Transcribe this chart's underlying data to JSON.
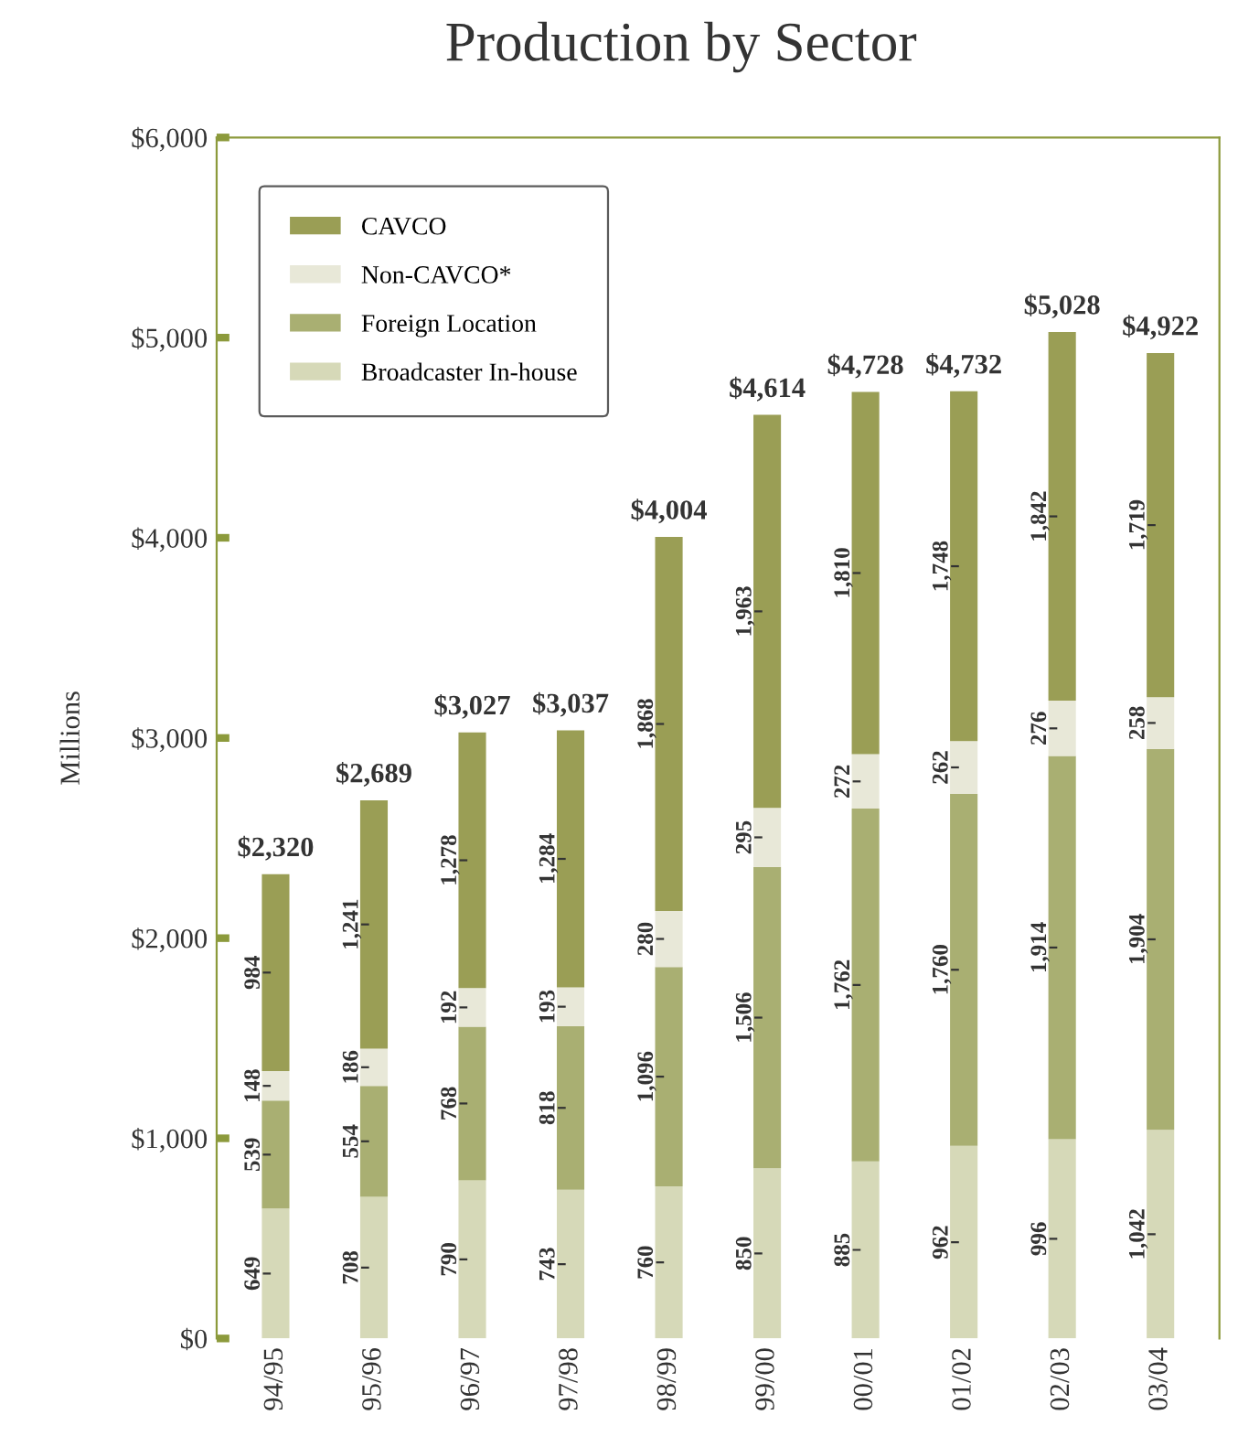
{
  "chart_data": {
    "type": "bar",
    "title": "Production by Sector",
    "ylabel": "Millions",
    "stacked": true,
    "categories": [
      "94/95",
      "95/96",
      "96/97",
      "97/98",
      "98/99",
      "99/00",
      "00/01",
      "01/02",
      "02/03",
      "03/04"
    ],
    "series": [
      {
        "name": "Broadcaster In-house",
        "color": "#d6d9b8",
        "values": [
          649,
          708,
          790,
          743,
          760,
          850,
          885,
          962,
          996,
          1042
        ],
        "value_labels": [
          "649",
          "708",
          "790",
          "743",
          "760",
          "850",
          "885",
          "962",
          "996",
          "1,042"
        ]
      },
      {
        "name": "Foreign Location",
        "color": "#a9af72",
        "values": [
          539,
          554,
          768,
          818,
          1096,
          1506,
          1762,
          1760,
          1914,
          1904
        ],
        "value_labels": [
          "539",
          "554",
          "768",
          "818",
          "1,096",
          "1,506",
          "1,762",
          "1,760",
          "1,914",
          "1,904"
        ]
      },
      {
        "name": "Non-CAVCO*",
        "color": "#e8e8d8",
        "values": [
          148,
          186,
          192,
          193,
          280,
          295,
          272,
          262,
          276,
          258
        ],
        "value_labels": [
          "148",
          "186",
          "192",
          "193",
          "280",
          "295",
          "272",
          "262",
          "276",
          "258"
        ]
      },
      {
        "name": "CAVCO",
        "color": "#9a9e55",
        "values": [
          984,
          1241,
          1278,
          1284,
          1868,
          1963,
          1810,
          1748,
          1842,
          1719
        ],
        "value_labels": [
          "984",
          "1,241",
          "1,278",
          "1,284",
          "1,868",
          "1,963",
          "1,810",
          "1,748",
          "1,842",
          "1,719"
        ]
      }
    ],
    "totals": [
      "$2,320",
      "$2,689",
      "$3,027",
      "$3,037",
      "$4,004",
      "$4,614",
      "$4,728",
      "$4,732",
      "$5,028",
      "$4,922"
    ],
    "ylim": [
      0,
      6000
    ],
    "yticks": [
      {
        "value": 0,
        "label": "$0"
      },
      {
        "value": 1000,
        "label": "$1,000"
      },
      {
        "value": 2000,
        "label": "$2,000"
      },
      {
        "value": 3000,
        "label": "$3,000"
      },
      {
        "value": 4000,
        "label": "$4,000"
      },
      {
        "value": 5000,
        "label": "$5,000"
      },
      {
        "value": 6000,
        "label": "$6,000"
      }
    ],
    "grid": false,
    "legend": "top left"
  }
}
